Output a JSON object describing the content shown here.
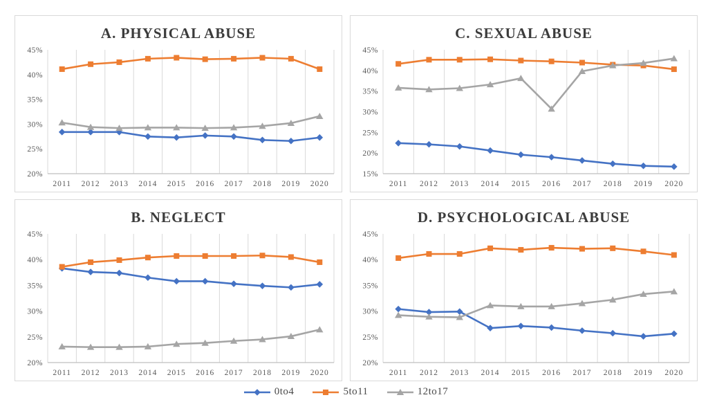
{
  "colors": {
    "series": {
      "0to4": "#4472C4",
      "5to11": "#ED7D31",
      "12to17": "#A5A5A5"
    },
    "gridline": "#d9d9d9",
    "axis_line": "#bfbfbf",
    "tick_text": "#595959",
    "title_text": "#3b3b3b",
    "panel_border": "#d9d9d9"
  },
  "years": [
    "2011",
    "2012",
    "2013",
    "2014",
    "2015",
    "2016",
    "2017",
    "2018",
    "2019",
    "2020"
  ],
  "legend": {
    "items": [
      {
        "label": "0to4",
        "marker": "diamond"
      },
      {
        "label": "5to11",
        "marker": "square"
      },
      {
        "label": "12to17",
        "marker": "triangle"
      }
    ]
  },
  "chart_data": [
    {
      "type": "line",
      "title": "A. PHYSICAL ABUSE",
      "position": "top-left",
      "x": [
        "2011",
        "2012",
        "2013",
        "2014",
        "2015",
        "2016",
        "2017",
        "2018",
        "2019",
        "2020"
      ],
      "ylim": [
        20,
        45
      ],
      "ytick_step": 5,
      "ytick_format": "percent",
      "grid": "vertical-only",
      "series": [
        {
          "name": "0to4",
          "marker": "diamond",
          "values": [
            28.4,
            28.4,
            28.4,
            27.5,
            27.3,
            27.7,
            27.5,
            26.8,
            26.6,
            27.3
          ]
        },
        {
          "name": "5to11",
          "marker": "square",
          "values": [
            41.1,
            42.1,
            42.5,
            43.2,
            43.4,
            43.1,
            43.2,
            43.4,
            43.2,
            41.1
          ]
        },
        {
          "name": "12to17",
          "marker": "triangle",
          "values": [
            30.3,
            29.4,
            29.2,
            29.3,
            29.3,
            29.2,
            29.3,
            29.6,
            30.2,
            31.6
          ]
        }
      ]
    },
    {
      "type": "line",
      "title": "C. SEXUAL ABUSE",
      "position": "top-right",
      "x": [
        "2011",
        "2012",
        "2013",
        "2014",
        "2015",
        "2016",
        "2017",
        "2018",
        "2019",
        "2020"
      ],
      "ylim": [
        15,
        45
      ],
      "ytick_step": 5,
      "ytick_format": "percent",
      "grid": "vertical-only",
      "series": [
        {
          "name": "0to4",
          "marker": "diamond",
          "values": [
            22.4,
            22.1,
            21.6,
            20.6,
            19.6,
            19.0,
            18.2,
            17.4,
            16.9,
            16.7
          ]
        },
        {
          "name": "5to11",
          "marker": "square",
          "values": [
            41.6,
            42.6,
            42.6,
            42.7,
            42.4,
            42.2,
            41.9,
            41.4,
            41.2,
            40.3
          ]
        },
        {
          "name": "12to17",
          "marker": "triangle",
          "values": [
            35.8,
            35.4,
            35.7,
            36.6,
            38.1,
            30.7,
            39.8,
            41.2,
            41.8,
            42.9
          ]
        }
      ]
    },
    {
      "type": "line",
      "title": "B. NEGLECT",
      "position": "bottom-left",
      "x": [
        "2011",
        "2012",
        "2013",
        "2014",
        "2015",
        "2016",
        "2017",
        "2018",
        "2019",
        "2020"
      ],
      "ylim": [
        20,
        45
      ],
      "ytick_step": 5,
      "ytick_format": "percent",
      "grid": "vertical-only",
      "series": [
        {
          "name": "0to4",
          "marker": "diamond",
          "values": [
            38.3,
            37.6,
            37.4,
            36.5,
            35.8,
            35.8,
            35.3,
            34.9,
            34.6,
            35.2
          ]
        },
        {
          "name": "5to11",
          "marker": "square",
          "values": [
            38.6,
            39.5,
            39.9,
            40.4,
            40.7,
            40.7,
            40.7,
            40.8,
            40.5,
            39.5
          ]
        },
        {
          "name": "12to17",
          "marker": "triangle",
          "values": [
            23.1,
            23.0,
            23.0,
            23.1,
            23.6,
            23.8,
            24.2,
            24.5,
            25.1,
            26.4
          ]
        }
      ]
    },
    {
      "type": "line",
      "title": "D. PSYCHOLOGICAL ABUSE",
      "position": "bottom-right",
      "x": [
        "2011",
        "2012",
        "2013",
        "2014",
        "2015",
        "2016",
        "2017",
        "2018",
        "2019",
        "2020"
      ],
      "ylim": [
        20,
        45
      ],
      "ytick_step": 5,
      "ytick_format": "percent",
      "grid": "vertical-only",
      "series": [
        {
          "name": "0to4",
          "marker": "diamond",
          "values": [
            30.4,
            29.8,
            29.9,
            26.7,
            27.1,
            26.8,
            26.2,
            25.7,
            25.1,
            25.6
          ]
        },
        {
          "name": "5to11",
          "marker": "square",
          "values": [
            40.3,
            41.1,
            41.1,
            42.2,
            41.9,
            42.3,
            42.1,
            42.2,
            41.6,
            40.9
          ]
        },
        {
          "name": "12to17",
          "marker": "triangle",
          "values": [
            29.2,
            28.9,
            28.8,
            31.1,
            30.9,
            30.9,
            31.5,
            32.2,
            33.3,
            33.8
          ]
        }
      ]
    }
  ]
}
